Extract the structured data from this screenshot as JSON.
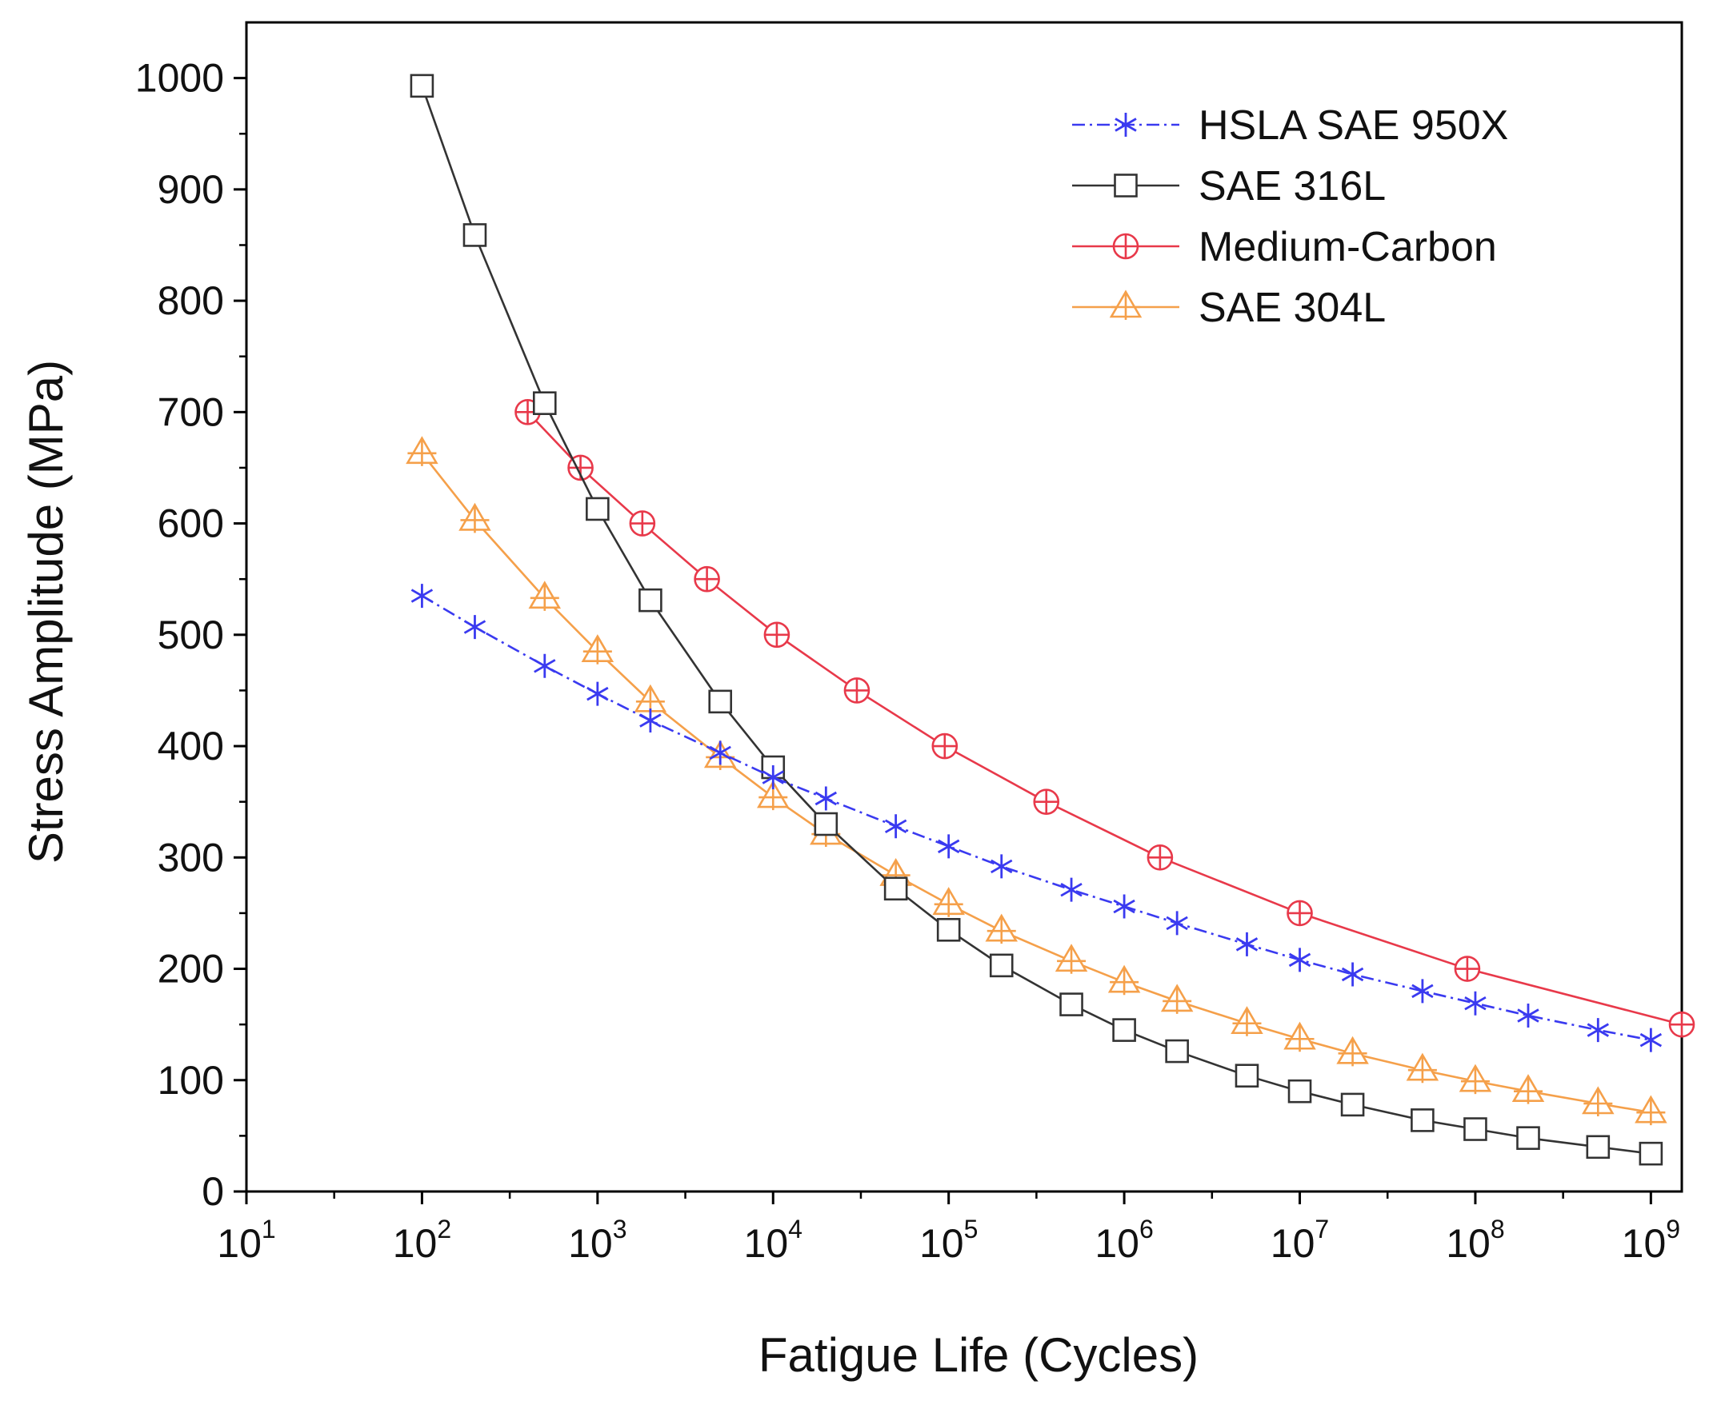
{
  "chart_data": {
    "type": "line",
    "title": "",
    "xlabel": "Fatigue Life (Cycles)",
    "ylabel": "Stress Amplitude (MPa)",
    "xscale": "log10",
    "xlim": [
      10,
      1500000000
    ],
    "ylim": [
      0,
      1050
    ],
    "grid": false,
    "legend_position": "top-right",
    "x_ticks": [
      {
        "base": "10",
        "exp": "1"
      },
      {
        "base": "10",
        "exp": "2"
      },
      {
        "base": "10",
        "exp": "3"
      },
      {
        "base": "10",
        "exp": "4"
      },
      {
        "base": "10",
        "exp": "5"
      },
      {
        "base": "10",
        "exp": "6"
      },
      {
        "base": "10",
        "exp": "7"
      },
      {
        "base": "10",
        "exp": "8"
      },
      {
        "base": "10",
        "exp": "9"
      }
    ],
    "y_ticks": [
      "0",
      "100",
      "200",
      "300",
      "400",
      "500",
      "600",
      "700",
      "800",
      "900",
      "1000"
    ],
    "series": [
      {
        "name": "HSLA SAE 950X",
        "color": "#3a3af0",
        "marker": "asterisk",
        "dash": "dash-dot",
        "x": [
          100,
          200,
          500,
          1000,
          2000,
          5000,
          10000,
          20000,
          50000,
          100000,
          200000,
          500000,
          1000000,
          2000000,
          5000000,
          10000000,
          20000000,
          50000000,
          100000000,
          200000000,
          500000000,
          1000000000
        ],
        "y": [
          535,
          507,
          472,
          447,
          423,
          394,
          372,
          353,
          328,
          310,
          292,
          271,
          256,
          241,
          222,
          208,
          195,
          180,
          169,
          158,
          145,
          136
        ]
      },
      {
        "name": "SAE 316L",
        "color": "#333333",
        "marker": "square",
        "dash": "solid",
        "x": [
          100,
          200,
          500,
          1000,
          2000,
          5000,
          10000,
          20000,
          50000,
          100000,
          200000,
          500000,
          1000000,
          2000000,
          5000000,
          10000000,
          20000000,
          50000000,
          100000000,
          200000000,
          500000000,
          1000000000
        ],
        "y": [
          993,
          859,
          708,
          613,
          531,
          440,
          381,
          330,
          272,
          235,
          203,
          168,
          145,
          126,
          104,
          90,
          78,
          64,
          56,
          48,
          40,
          34
        ]
      },
      {
        "name": "Medium-Carbon",
        "color": "#e8394a",
        "marker": "circle-plus",
        "dash": "solid",
        "x": [
          400,
          800,
          1800,
          4200,
          10500,
          30000,
          95000,
          360000,
          1600000,
          10000000,
          90000000,
          1500000000
        ],
        "y": [
          700,
          650,
          600,
          550,
          500,
          450,
          400,
          350,
          300,
          250,
          200,
          150
        ]
      },
      {
        "name": "SAE 304L",
        "color": "#f5a04a",
        "marker": "triangle-plus",
        "dash": "solid",
        "x": [
          100,
          200,
          500,
          1000,
          2000,
          5000,
          10000,
          20000,
          50000,
          100000,
          200000,
          500000,
          1000000,
          2000000,
          5000000,
          10000000,
          20000000,
          50000000,
          100000000,
          200000000,
          500000000,
          1000000000
        ],
        "y": [
          663,
          603,
          533,
          485,
          440,
          390,
          354,
          321,
          284,
          258,
          234,
          207,
          188,
          171,
          151,
          137,
          124,
          109,
          99,
          90,
          79,
          71
        ]
      }
    ]
  }
}
